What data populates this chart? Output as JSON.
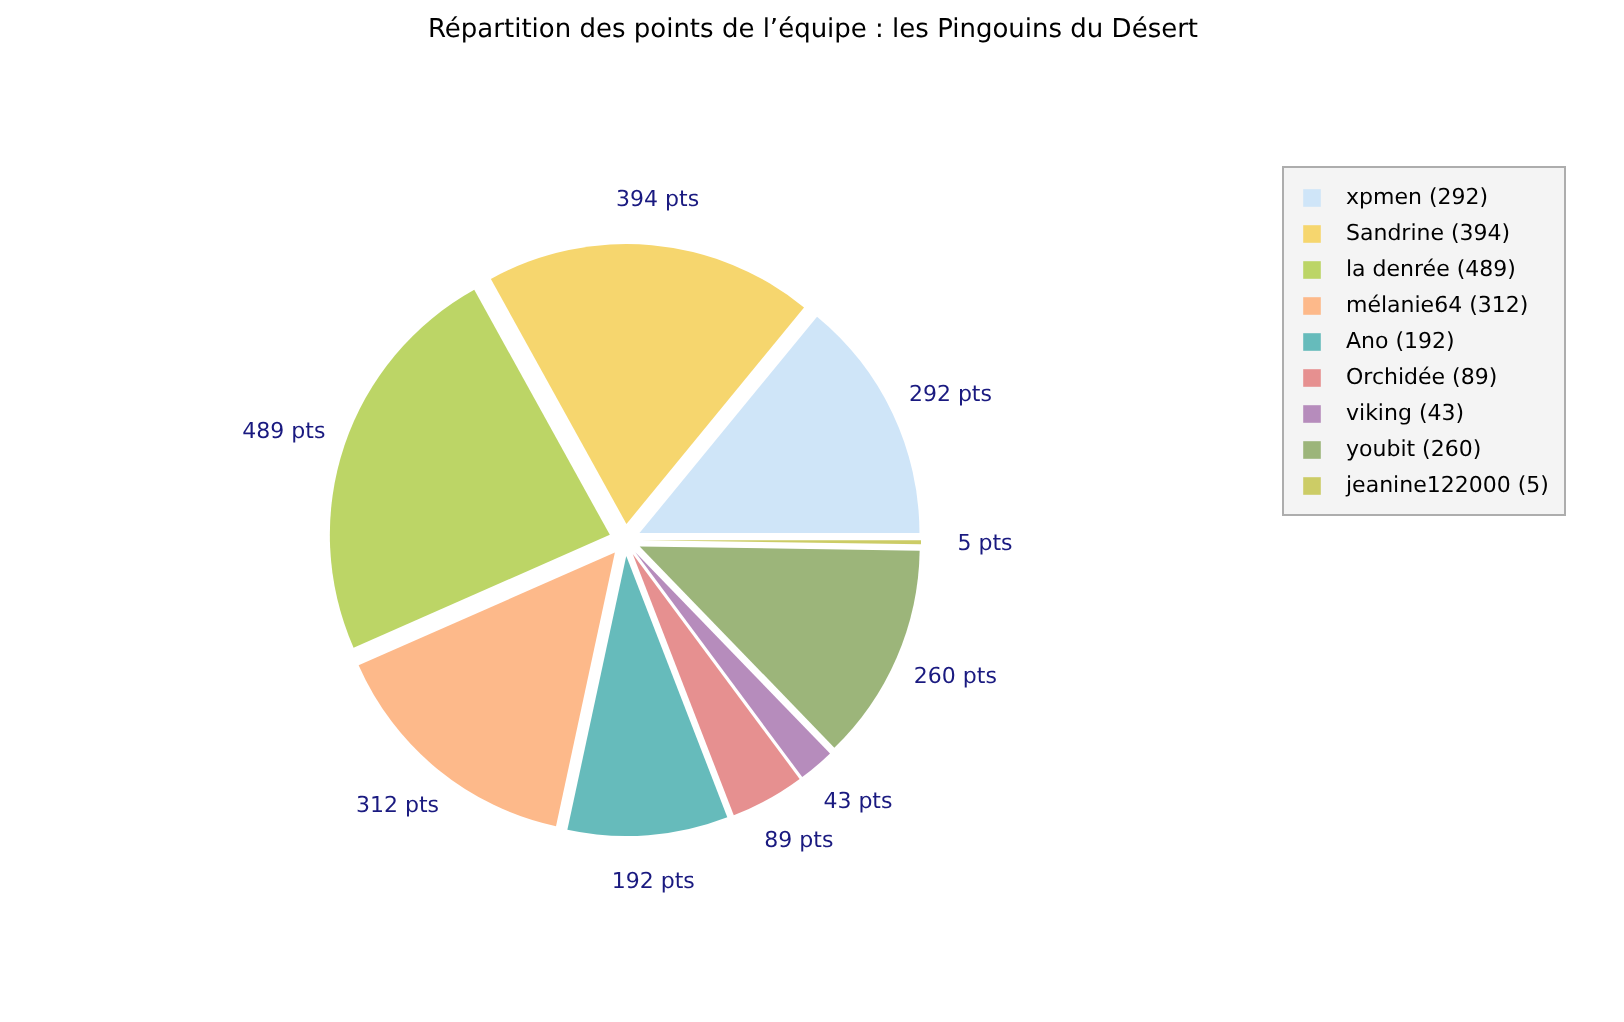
{
  "chart_data": {
    "type": "pie",
    "title": "Répartition des points de l’équipe : les Pingouins du Désert",
    "categories": [
      "xpmen (292)",
      "Sandrine (394)",
      "la denrée (489)",
      "mélanie64 (312)",
      "Ano (192)",
      "Orchidée (89)",
      "viking (43)",
      "youbit (260)",
      "jeanine122000 (5)"
    ],
    "values": [
      292,
      394,
      489,
      312,
      192,
      89,
      43,
      260,
      5
    ],
    "colors": [
      "#cfe5f8",
      "#f6d66e",
      "#bcd566",
      "#fdb98a",
      "#66bbbb",
      "#e69090",
      "#b68cbc",
      "#9cb57a",
      "#cccc66"
    ],
    "value_labels": [
      "292 pts",
      "394 pts",
      "489 pts",
      "312 pts",
      "192 pts",
      "89 pts",
      "43 pts",
      "260 pts",
      "5 pts"
    ],
    "legend": "right"
  }
}
